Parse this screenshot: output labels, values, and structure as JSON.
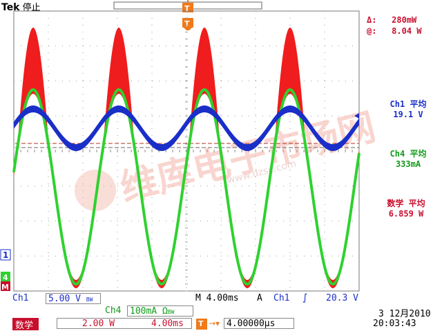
{
  "header": {
    "brand": "Tek",
    "status": "停止"
  },
  "cursor": {
    "delta_label": "Δ:",
    "delta_value": "280mW",
    "at_label": "@:",
    "at_value": "8.04 W"
  },
  "measurements": [
    {
      "name": "Ch1 平均",
      "value": "19.1 V"
    },
    {
      "name": "Ch4 平均",
      "value": "333mA"
    },
    {
      "name": "数学 平均",
      "value": "6.859 W"
    }
  ],
  "markers": {
    "ch1": "1",
    "ch4": "4",
    "math": "M",
    "trigger": "T"
  },
  "bottom": {
    "ch1_label": "Ch1",
    "ch1_scale": "5.00 V",
    "ch1_bw": "BW",
    "ch4_label": "Ch4",
    "ch4_scale": "100mA Ω",
    "ch4_bw": "BW",
    "timebase": "M 4.00ms",
    "trig_mode": "A",
    "trig_src": "Ch1",
    "trig_level": "20.3 V",
    "math_label": "数学",
    "math_scale": "2.00 W",
    "math_time": "4.00ms",
    "trig_pos_value": "4.00000µs",
    "date": "3 12月2010",
    "time": "20:03:43"
  },
  "watermark": {
    "text": "维库电子市场网",
    "url": "www.dzsc.com"
  },
  "colors": {
    "ch1": "#1a2fc8",
    "ch4": "#2fd12f",
    "math": "#ee1111",
    "orange": "#f07a1a",
    "grid": "#9a9a9a"
  }
}
